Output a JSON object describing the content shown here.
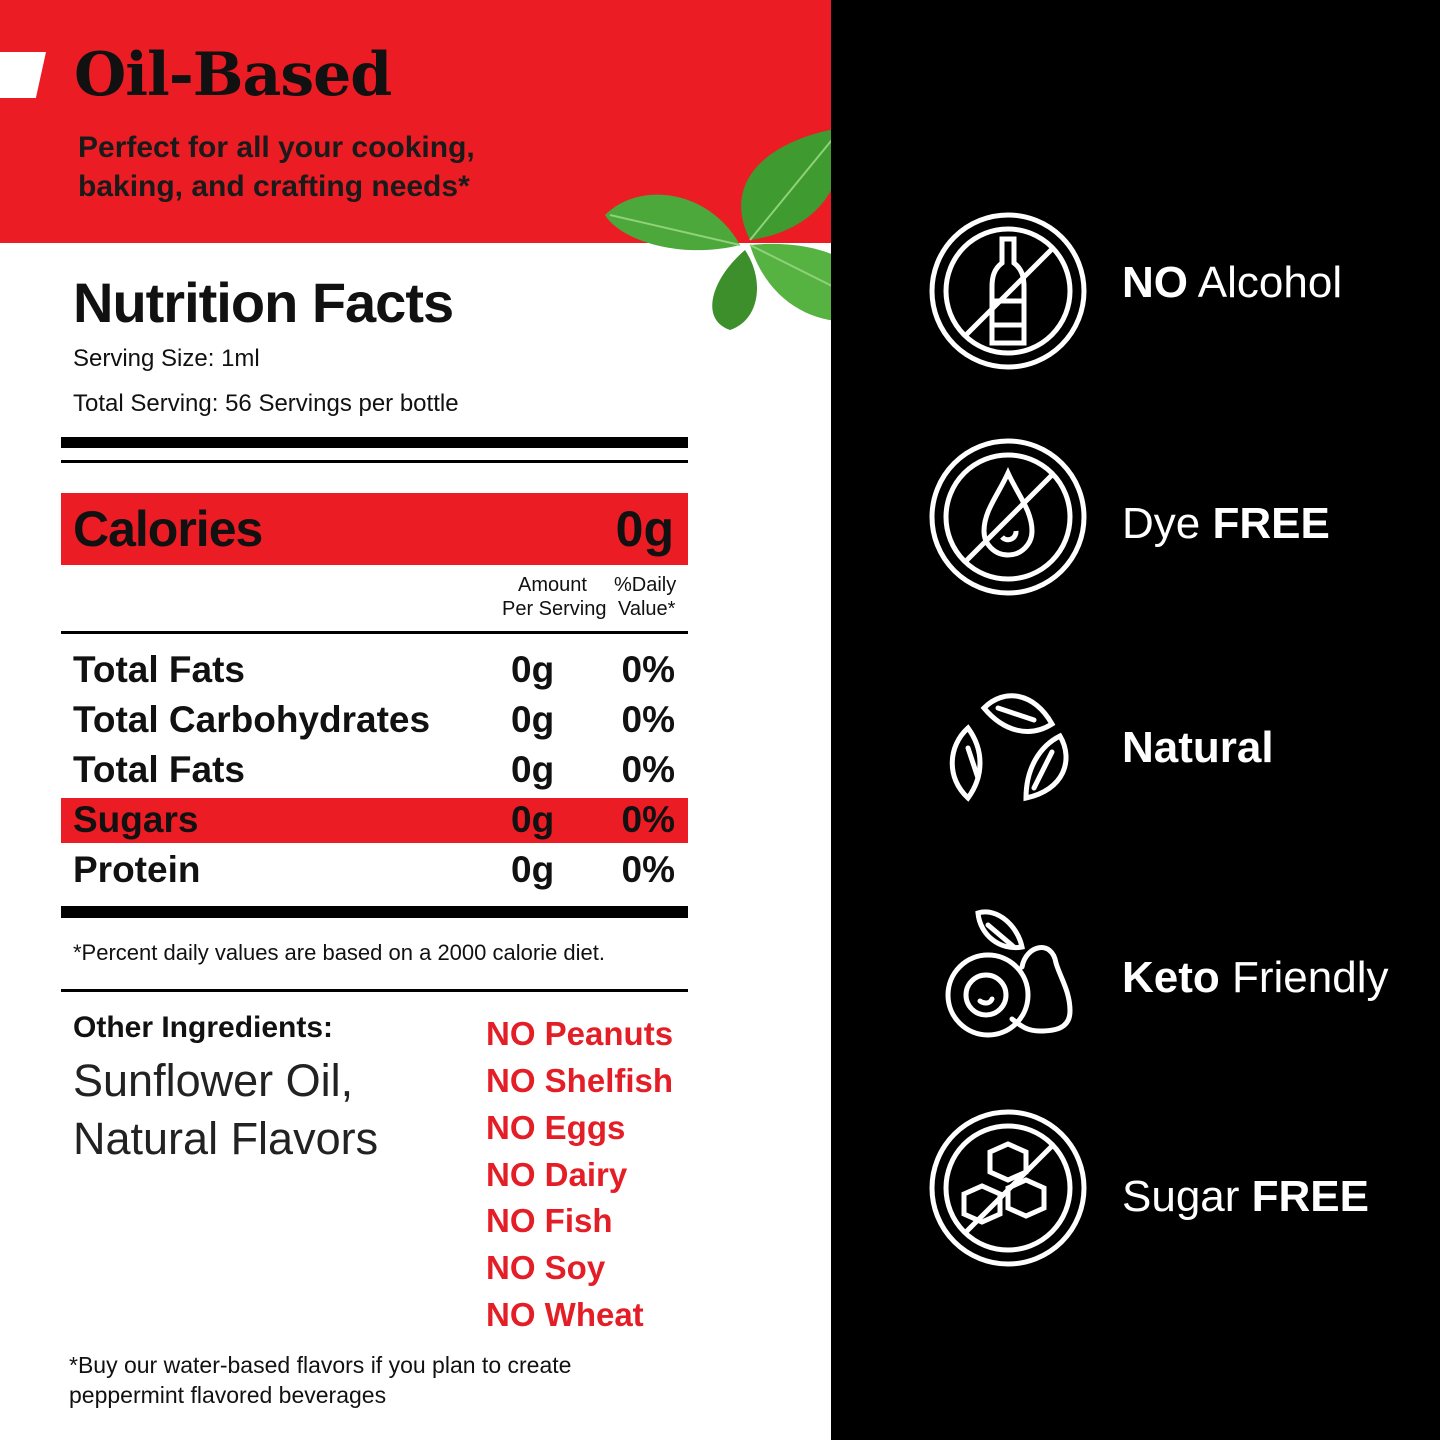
{
  "header": {
    "title": "Oil-Based",
    "subtitle_line1": "Perfect for all your cooking,",
    "subtitle_line2": "baking, and crafting needs*"
  },
  "nutrition": {
    "title": "Nutrition Facts",
    "serving_size": "Serving Size: 1ml",
    "total_serving": "Total Serving: 56 Servings per bottle",
    "calories_label": "Calories",
    "calories_value": "0g",
    "col_amount_1": "Amount",
    "col_amount_2": "Per Serving",
    "col_dv_1": "%Daily",
    "col_dv_2": "Value*",
    "rows": [
      {
        "name": "Total Fats",
        "amount": "0g",
        "dv": "0%"
      },
      {
        "name": "Total Carbohydrates",
        "amount": "0g",
        "dv": "0%"
      },
      {
        "name": "Total Fats",
        "amount": "0g",
        "dv": "0%"
      },
      {
        "name": "Sugars",
        "amount": "0g",
        "dv": "0%"
      },
      {
        "name": "Protein",
        "amount": "0g",
        "dv": "0%"
      }
    ],
    "footnote": "*Percent daily values are based on a 2000 calorie diet."
  },
  "ingredients": {
    "label": "Other Ingredients:",
    "line1": "Sunflower Oil,",
    "line2": "Natural Flavors"
  },
  "allergens": [
    "NO Peanuts",
    "NO Shelfish",
    "NO Eggs",
    "NO Dairy",
    "NO Fish",
    "NO Soy",
    "NO Wheat"
  ],
  "bottom_note": {
    "line1": "*Buy our water-based flavors if you plan to create",
    "line2": "peppermint flavored beverages"
  },
  "badges": [
    {
      "icon": "no-alcohol-icon",
      "pre": "NO",
      "post": " Alcohol",
      "bold_first": true
    },
    {
      "icon": "dye-free-icon",
      "pre": "Dye ",
      "post": "FREE",
      "bold_first": false
    },
    {
      "icon": "natural-leaves-icon",
      "pre": "Natural",
      "post": "",
      "bold_first": true
    },
    {
      "icon": "keto-avocado-icon",
      "pre": "Keto",
      "post": " Friendly",
      "bold_first": true
    },
    {
      "icon": "sugar-free-icon",
      "pre": "Sugar ",
      "post": "FREE",
      "bold_first": false
    }
  ],
  "colors": {
    "accent": "#ec1c24",
    "dark": "#000000",
    "text": "#111111"
  }
}
